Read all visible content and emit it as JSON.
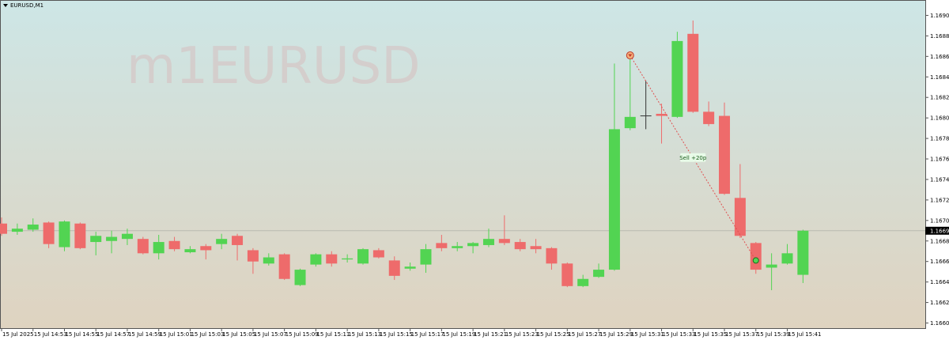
{
  "chart_data": {
    "type": "candlestick",
    "title": "EURUSD,M1",
    "watermark": "m1EURUSD",
    "categories": [
      "15 Jul 2025",
      null,
      "15 Jul 14:53",
      null,
      "15 Jul 14:55",
      null,
      "15 Jul 14:57",
      null,
      "15 Jul 14:59",
      null,
      "15 Jul 15:01",
      null,
      "15 Jul 15:03",
      null,
      "15 Jul 15:05",
      null,
      "15 Jul 15:07",
      null,
      "15 Jul 15:09",
      null,
      "15 Jul 15:11",
      null,
      "15 Jul 15:13",
      null,
      "15 Jul 15:15",
      null,
      "15 Jul 15:17",
      null,
      "15 Jul 15:19",
      null,
      "15 Jul 15:21",
      null,
      "15 Jul 15:23",
      null,
      "15 Jul 15:25",
      null,
      "15 Jul 15:27",
      null,
      "15 Jul 15:29",
      null,
      "15 Jul 15:31",
      null,
      "15 Jul 15:33",
      null,
      "15 Jul 15:35",
      null,
      "15 Jul 15:37",
      null,
      "15 Jul 15:39",
      null,
      "15 Jul 15:41",
      null
    ],
    "open": [
      1.16702,
      1.16694,
      1.16696,
      1.16703,
      1.16679,
      1.16702,
      1.16684,
      1.16685,
      1.16687,
      1.16687,
      1.16673,
      1.16685,
      1.16674,
      1.1668,
      1.16682,
      1.1669,
      1.16676,
      1.16663,
      1.16672,
      1.16642,
      1.16662,
      1.16672,
      1.16667,
      1.16663,
      1.16676,
      1.16666,
      1.16658,
      1.16662,
      1.16683,
      1.16678,
      1.1668,
      1.16681,
      1.16687,
      1.16684,
      1.1668,
      1.16678,
      1.16663,
      1.16641,
      1.1665,
      1.16657,
      1.16795,
      1.16807,
      1.16809,
      1.16806,
      1.16887,
      1.16811,
      1.16807,
      1.16727,
      1.16683,
      1.16659,
      1.16663,
      1.16652
    ],
    "high": [
      1.16708,
      1.16702,
      1.16707,
      1.16704,
      1.16705,
      1.16703,
      1.16694,
      1.16695,
      1.16697,
      1.16689,
      1.16691,
      1.16689,
      1.1668,
      1.16682,
      1.16692,
      1.16692,
      1.16678,
      1.16673,
      1.16673,
      1.16658,
      1.16673,
      1.16675,
      1.16672,
      1.16678,
      1.16678,
      1.1667,
      1.16664,
      1.16682,
      1.16691,
      1.16684,
      1.16684,
      1.16697,
      1.1671,
      1.16687,
      1.16687,
      1.16679,
      1.16664,
      1.16652,
      1.16663,
      1.16858,
      1.16866,
      1.16841,
      1.16819,
      1.16889,
      1.169,
      1.16821,
      1.1682,
      1.1676,
      1.16684,
      1.16673,
      1.16682,
      1.16696
    ],
    "low": [
      1.1669,
      1.16691,
      1.16694,
      1.16678,
      1.16675,
      1.16677,
      1.16671,
      1.16673,
      1.16681,
      1.16672,
      1.16667,
      1.16675,
      1.16673,
      1.16667,
      1.16677,
      1.16666,
      1.16653,
      1.16661,
      1.16647,
      1.16641,
      1.1666,
      1.1666,
      1.16664,
      1.16662,
      1.16668,
      1.16647,
      1.16656,
      1.16654,
      1.16675,
      1.16675,
      1.16673,
      1.16679,
      1.16681,
      1.16675,
      1.16673,
      1.16657,
      1.1664,
      1.1664,
      1.16649,
      1.16656,
      1.16793,
      1.16794,
      1.1678,
      1.16805,
      1.1681,
      1.16797,
      1.1673,
      1.16688,
      1.16653,
      1.16637,
      1.16662,
      1.16644
    ],
    "close": [
      1.16692,
      1.16697,
      1.16701,
      1.16682,
      1.16704,
      1.16678,
      1.1669,
      1.16689,
      1.16692,
      1.16673,
      1.16684,
      1.16677,
      1.16677,
      1.16676,
      1.16687,
      1.16681,
      1.16665,
      1.16669,
      1.16648,
      1.16657,
      1.16672,
      1.16663,
      1.16668,
      1.16677,
      1.16669,
      1.16651,
      1.1666,
      1.16677,
      1.16678,
      1.1668,
      1.16683,
      1.16687,
      1.16683,
      1.16677,
      1.16677,
      1.16663,
      1.16641,
      1.16648,
      1.16657,
      1.16794,
      1.16806,
      1.16807,
      1.16807,
      1.1688,
      1.16811,
      1.16799,
      1.16731,
      1.1669,
      1.16657,
      1.16662,
      1.16673,
      1.16695
    ],
    "up_color": "#52d452",
    "down_color": "#ee6b6b",
    "doji_color": "#333333",
    "ylim": [
      1.166,
      1.1692
    ],
    "yticks": [
      1.16905,
      1.16885,
      1.16865,
      1.16845,
      1.16825,
      1.16805,
      1.16785,
      1.16765,
      1.16745,
      1.16725,
      1.16705,
      1.16685,
      1.16665,
      1.16645,
      1.16625,
      1.16605
    ],
    "current_price": 1.16695,
    "trade": {
      "label": "Sell +20p",
      "open_price": 1.16866,
      "close_price": 1.16666
    }
  }
}
